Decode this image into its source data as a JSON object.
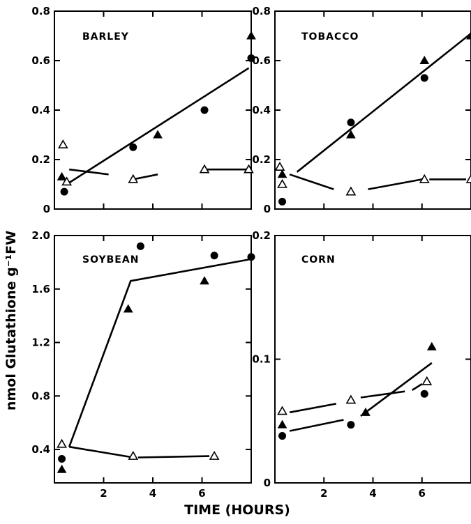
{
  "ylabel": "nmol Glutathione g⁻¹FW",
  "xlabel": "TIME (HOURS)",
  "chart_data": [
    {
      "id": "barley",
      "type": "scatter",
      "title": "BARLEY",
      "xlim": [
        0,
        8
      ],
      "ylim": [
        0,
        0.8
      ],
      "yticks": [
        "0",
        "0.2",
        "0.4",
        "0.6",
        "0.8"
      ],
      "ytick_values": [
        0,
        0.2,
        0.4,
        0.6,
        0.8
      ],
      "xticks": [],
      "series": [
        {
          "marker": "filled-triangle",
          "points": [
            [
              0.3,
              0.13
            ],
            [
              4.2,
              0.3
            ],
            [
              8.0,
              0.7
            ]
          ]
        },
        {
          "marker": "filled-circle",
          "points": [
            [
              0.4,
              0.07
            ],
            [
              3.2,
              0.25
            ],
            [
              6.1,
              0.4
            ],
            [
              8.0,
              0.61
            ]
          ]
        },
        {
          "marker": "open-triangle",
          "points": [
            [
              0.35,
              0.26
            ],
            [
              0.5,
              0.11
            ],
            [
              3.2,
              0.12
            ],
            [
              6.1,
              0.16
            ],
            [
              7.9,
              0.16
            ]
          ]
        }
      ],
      "lines": [
        {
          "points": [
            [
              0.5,
              0.1
            ],
            [
              7.9,
              0.57
            ]
          ]
        },
        {
          "points": [
            [
              0.6,
              0.16
            ],
            [
              2.2,
              0.14
            ]
          ]
        },
        {
          "points": [
            [
              3.2,
              0.12
            ],
            [
              4.2,
              0.14
            ]
          ]
        },
        {
          "points": [
            [
              6.1,
              0.16
            ],
            [
              7.8,
              0.16
            ]
          ]
        }
      ]
    },
    {
      "id": "tobacco",
      "type": "scatter",
      "title": "TOBACCO",
      "xlim": [
        0,
        8
      ],
      "ylim": [
        0,
        0.8
      ],
      "yticks": [
        "0",
        "0.2",
        "0.4",
        "0.6",
        "0.8"
      ],
      "ytick_values": [
        0,
        0.2,
        0.4,
        0.6,
        0.8
      ],
      "xticks": [],
      "series": [
        {
          "marker": "filled-triangle",
          "points": [
            [
              0.3,
              0.14
            ],
            [
              3.1,
              0.3
            ],
            [
              6.1,
              0.6
            ],
            [
              8.0,
              0.7
            ]
          ]
        },
        {
          "marker": "filled-circle",
          "points": [
            [
              0.3,
              0.03
            ],
            [
              3.1,
              0.35
            ],
            [
              6.1,
              0.53
            ]
          ]
        },
        {
          "marker": "open-triangle",
          "points": [
            [
              0.2,
              0.17
            ],
            [
              0.3,
              0.1
            ],
            [
              3.1,
              0.07
            ],
            [
              6.1,
              0.12
            ],
            [
              8.0,
              0.12
            ]
          ]
        }
      ],
      "lines": [
        {
          "points": [
            [
              0.9,
              0.15
            ],
            [
              8.0,
              0.71
            ]
          ]
        },
        {
          "points": [
            [
              0.6,
              0.14
            ],
            [
              2.4,
              0.08
            ]
          ]
        },
        {
          "points": [
            [
              3.8,
              0.08
            ],
            [
              6.0,
              0.12
            ]
          ]
        },
        {
          "points": [
            [
              6.3,
              0.12
            ],
            [
              7.8,
              0.12
            ]
          ]
        }
      ]
    },
    {
      "id": "soybean",
      "type": "scatter",
      "title": "SOYBEAN",
      "xlim": [
        0,
        8
      ],
      "ylim": [
        0,
        2.0
      ],
      "yticks": [
        "0.4",
        "0.8",
        "1.2",
        "1.6",
        "2.0"
      ],
      "ytick_values": [
        0.4,
        0.8,
        1.2,
        1.6,
        2.0
      ],
      "xticks": [
        "2",
        "4",
        "6"
      ],
      "xtick_values": [
        2,
        4,
        6
      ],
      "series": [
        {
          "marker": "filled-triangle",
          "points": [
            [
              0.3,
              0.25
            ],
            [
              3.0,
              1.45
            ],
            [
              6.1,
              1.66
            ]
          ]
        },
        {
          "marker": "filled-circle",
          "points": [
            [
              0.3,
              0.33
            ],
            [
              3.5,
              1.92
            ],
            [
              6.5,
              1.85
            ],
            [
              8.0,
              1.84
            ]
          ]
        },
        {
          "marker": "open-triangle",
          "points": [
            [
              0.3,
              0.44
            ],
            [
              3.2,
              0.35
            ],
            [
              6.5,
              0.35
            ]
          ]
        }
      ],
      "lines": [
        {
          "points": [
            [
              0.6,
              0.42
            ],
            [
              3.1,
              1.66
            ],
            [
              7.9,
              1.82
            ]
          ]
        },
        {
          "points": [
            [
              0.6,
              0.42
            ],
            [
              3.2,
              0.34
            ]
          ]
        },
        {
          "points": [
            [
              3.4,
              0.34
            ],
            [
              6.3,
              0.35
            ]
          ]
        }
      ]
    },
    {
      "id": "corn",
      "type": "scatter",
      "title": "CORN",
      "xlim": [
        0,
        8
      ],
      "ylim": [
        0,
        0.2
      ],
      "yticks": [
        "0",
        "0.1",
        "0.2"
      ],
      "ytick_values": [
        0,
        0.1,
        0.2
      ],
      "xticks": [
        "2",
        "4",
        "6"
      ],
      "xtick_values": [
        2,
        4,
        6
      ],
      "series": [
        {
          "marker": "filled-triangle",
          "points": [
            [
              0.3,
              0.047
            ],
            [
              3.7,
              0.057
            ],
            [
              6.4,
              0.11
            ]
          ]
        },
        {
          "marker": "filled-circle",
          "points": [
            [
              0.3,
              0.038
            ],
            [
              3.1,
              0.047
            ],
            [
              6.1,
              0.072
            ]
          ]
        },
        {
          "marker": "open-triangle",
          "points": [
            [
              0.3,
              0.058
            ],
            [
              3.1,
              0.067
            ],
            [
              6.2,
              0.082
            ]
          ]
        }
      ],
      "lines": [
        {
          "points": [
            [
              0.6,
              0.042
            ],
            [
              2.8,
              0.051
            ]
          ]
        },
        {
          "points": [
            [
              3.5,
              0.054
            ],
            [
              6.4,
              0.097
            ]
          ]
        },
        {
          "points": [
            [
              0.6,
              0.057
            ],
            [
              2.5,
              0.064
            ]
          ]
        },
        {
          "points": [
            [
              3.5,
              0.069
            ],
            [
              5.3,
              0.074
            ]
          ]
        },
        {
          "points": [
            [
              5.6,
              0.075
            ],
            [
              6.0,
              0.08
            ]
          ]
        }
      ]
    }
  ]
}
